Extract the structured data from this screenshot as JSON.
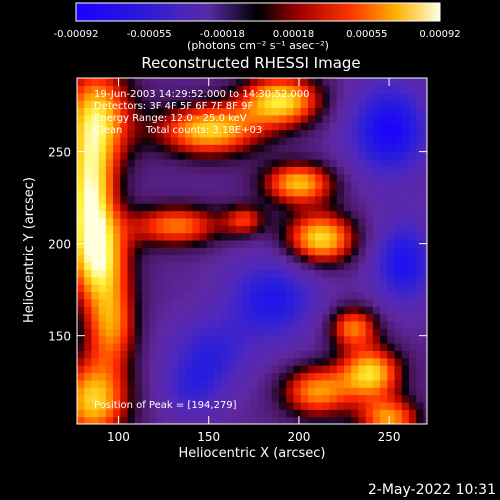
{
  "chart_data": {
    "type": "heatmap",
    "title": "Reconstructed RHESSI Image",
    "xlabel": "Heliocentric X (arcsec)",
    "ylabel": "Heliocentric Y (arcsec)",
    "xlim": [
      77,
      271
    ],
    "ylim": [
      102,
      290
    ],
    "x_ticks": [
      "100",
      "150",
      "200",
      "250"
    ],
    "x_tick_values": [
      100,
      150,
      200,
      250
    ],
    "y_ticks": [
      "150",
      "200",
      "250"
    ],
    "y_tick_values": [
      150,
      200,
      250
    ],
    "colorbar": {
      "ticks": [
        "-0.00092",
        "-0.00055",
        "-0.00018",
        "0.00018",
        "0.00055",
        "0.00092"
      ],
      "tick_values": [
        -0.00092,
        -0.00055,
        -0.00018,
        0.00018,
        0.00055,
        0.00092
      ],
      "range": [
        -0.00092,
        0.00092
      ],
      "units": "(photons cm⁻² s⁻¹ asec⁻²)"
    },
    "annotations": {
      "time_range": "19-Jun-2003 14:29:52.000 to 14:30:52.000",
      "detectors": "Detectors: 3F 4F 5F 6F 7F 8F 9F",
      "energy": "Energy Range: 12.0 - 25.0 keV",
      "algorithm": "Clean",
      "counts": "Total counts: 3.18E+03",
      "peak": "Position of Peak = [194,279]"
    },
    "sources": [
      {
        "x": 88,
        "y": 270,
        "amp": 0.9,
        "sx": 14,
        "sy": 20
      },
      {
        "x": 84,
        "y": 225,
        "amp": 1.0,
        "sx": 10,
        "sy": 24
      },
      {
        "x": 90,
        "y": 190,
        "amp": 0.85,
        "sx": 12,
        "sy": 18
      },
      {
        "x": 96,
        "y": 155,
        "amp": 0.7,
        "sx": 10,
        "sy": 16
      },
      {
        "x": 86,
        "y": 115,
        "amp": 0.95,
        "sx": 14,
        "sy": 16
      },
      {
        "x": 150,
        "y": 262,
        "amp": 0.95,
        "sx": 20,
        "sy": 10
      },
      {
        "x": 190,
        "y": 278,
        "amp": 1.0,
        "sx": 16,
        "sy": 10
      },
      {
        "x": 132,
        "y": 210,
        "amp": 0.75,
        "sx": 18,
        "sy": 8
      },
      {
        "x": 170,
        "y": 213,
        "amp": 0.55,
        "sx": 8,
        "sy": 6
      },
      {
        "x": 200,
        "y": 233,
        "amp": 0.9,
        "sx": 14,
        "sy": 8
      },
      {
        "x": 212,
        "y": 203,
        "amp": 1.0,
        "sx": 14,
        "sy": 10
      },
      {
        "x": 230,
        "y": 155,
        "amp": 0.75,
        "sx": 10,
        "sy": 8
      },
      {
        "x": 240,
        "y": 130,
        "amp": 0.95,
        "sx": 12,
        "sy": 10
      },
      {
        "x": 210,
        "y": 120,
        "amp": 0.8,
        "sx": 14,
        "sy": 10
      },
      {
        "x": 250,
        "y": 105,
        "amp": 0.8,
        "sx": 12,
        "sy": 8
      },
      {
        "x": 250,
        "y": 262,
        "amp": -0.8,
        "sx": 16,
        "sy": 18
      },
      {
        "x": 185,
        "y": 170,
        "amp": -0.65,
        "sx": 18,
        "sy": 16
      },
      {
        "x": 258,
        "y": 190,
        "amp": -0.7,
        "sx": 12,
        "sy": 16
      },
      {
        "x": 150,
        "y": 140,
        "amp": -0.5,
        "sx": 16,
        "sy": 14
      },
      {
        "x": 140,
        "y": 120,
        "amp": -0.35,
        "sx": 12,
        "sy": 10
      }
    ]
  },
  "footer": {
    "date": "2-May-2022 10:31"
  }
}
